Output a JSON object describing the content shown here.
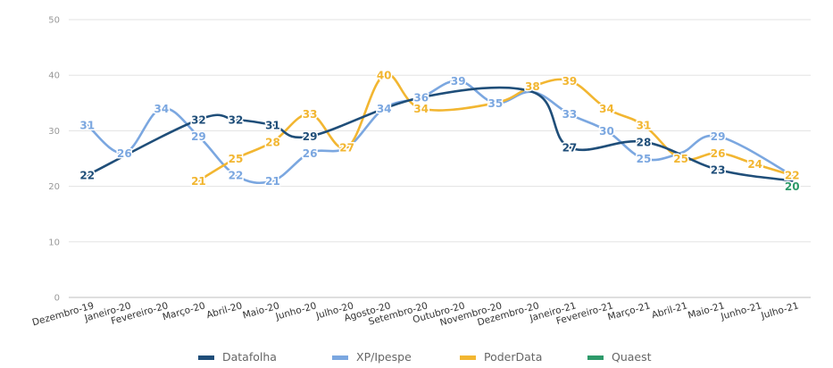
{
  "chart_data": {
    "type": "line",
    "title": "",
    "xlabel": "",
    "ylabel": "",
    "ylim": [
      0,
      50
    ],
    "yticks": [
      0,
      10,
      20,
      30,
      40,
      50
    ],
    "grid": true,
    "legend_position": "bottom",
    "categories": [
      "Dezembro-19",
      "Janeiro-20",
      "Fevereiro-20",
      "Março-20",
      "Abril-20",
      "Maio-20",
      "Junho-20",
      "Julho-20",
      "Agosto-20",
      "Setembro-20",
      "Outubro-20",
      "Novembro-20",
      "Dezembro-20",
      "Janeiro-21",
      "Fevereiro-21",
      "Março-21",
      "Abril-21",
      "Maio-21",
      "Junho-21",
      "Julho-21"
    ],
    "series": [
      {
        "name": "Datafolha",
        "color": "#1f4e79",
        "values": [
          22,
          null,
          null,
          32,
          32,
          31,
          29,
          null,
          null,
          36,
          null,
          null,
          37,
          27,
          null,
          28,
          null,
          23,
          null,
          21
        ],
        "labels": [
          22,
          null,
          null,
          32,
          32,
          31,
          29,
          null,
          null,
          null,
          null,
          null,
          null,
          27,
          null,
          28,
          null,
          23,
          null,
          null
        ]
      },
      {
        "name": "XP/Ipespe",
        "color": "#7ba7e0",
        "values": [
          31,
          26,
          34,
          29,
          22,
          21,
          26,
          27,
          34,
          36,
          39,
          35,
          37,
          33,
          30,
          25,
          26,
          29,
          null,
          22
        ],
        "labels": [
          31,
          26,
          34,
          29,
          22,
          21,
          26,
          null,
          34,
          36,
          39,
          35,
          null,
          33,
          30,
          25,
          null,
          29,
          null,
          null
        ]
      },
      {
        "name": "PoderData",
        "color": "#f2b631",
        "values": [
          null,
          null,
          null,
          21,
          25,
          28,
          33,
          27,
          40,
          34,
          null,
          35,
          38,
          39,
          34,
          31,
          25,
          26,
          24,
          22
        ],
        "labels": [
          null,
          null,
          null,
          21,
          25,
          28,
          33,
          27,
          40,
          34,
          null,
          null,
          38,
          39,
          34,
          31,
          25,
          26,
          24,
          22
        ]
      },
      {
        "name": "Quaest",
        "color": "#2e9a6a",
        "values": [
          null,
          null,
          null,
          null,
          null,
          null,
          null,
          null,
          null,
          null,
          null,
          null,
          null,
          null,
          null,
          null,
          null,
          null,
          null,
          20
        ],
        "labels": [
          null,
          null,
          null,
          null,
          null,
          null,
          null,
          null,
          null,
          null,
          null,
          null,
          null,
          null,
          null,
          null,
          null,
          null,
          null,
          20
        ]
      }
    ]
  }
}
